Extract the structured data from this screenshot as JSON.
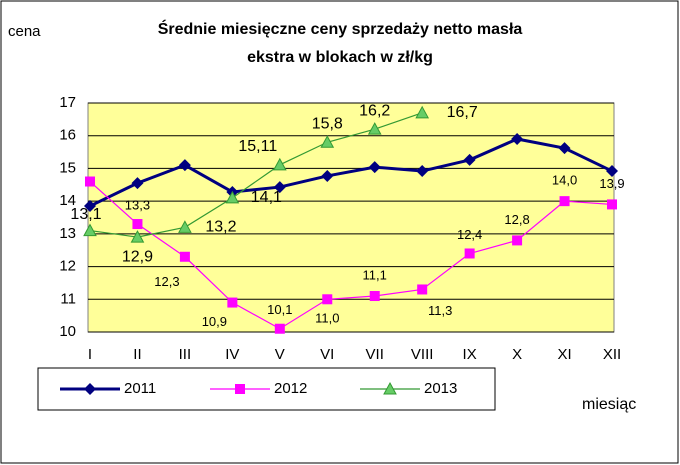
{
  "chart_data": {
    "type": "line",
    "title": [
      "Średnie miesięczne ceny sprzedaży netto masła",
      "ekstra w blokach w zł/kg"
    ],
    "y_label": "cena",
    "x_label": "miesiąc",
    "categories": [
      "I",
      "II",
      "III",
      "IV",
      "V",
      "VI",
      "VII",
      "VIII",
      "IX",
      "X",
      "XI",
      "XII"
    ],
    "ylim": [
      10,
      17
    ],
    "yticks": [
      10,
      11,
      12,
      13,
      14,
      15,
      16,
      17
    ],
    "grid": true,
    "series": [
      {
        "name": "2011",
        "color": "#000080",
        "marker": "diamond",
        "values": [
          13.85,
          14.55,
          15.1,
          14.28,
          14.43,
          14.77,
          15.04,
          14.92,
          15.26,
          15.9,
          15.62,
          14.92
        ]
      },
      {
        "name": "2012",
        "color": "#ff00ff",
        "marker": "square",
        "values": [
          14.6,
          13.3,
          12.3,
          10.9,
          10.1,
          11.0,
          11.1,
          11.3,
          12.4,
          12.8,
          14.0,
          13.9
        ],
        "value_labels": [
          null,
          "13,3",
          "12,3",
          "10,9",
          "10,1",
          "11,0",
          "11,1",
          "11,3",
          "12,4",
          "12,8",
          "14,0",
          "13,9"
        ]
      },
      {
        "name": "2013",
        "color": "#339933",
        "marker": "triangle",
        "values": [
          13.1,
          12.9,
          13.2,
          14.1,
          15.11,
          15.8,
          16.2,
          16.7,
          null,
          null,
          null,
          null
        ],
        "value_labels": [
          "13,1",
          "12,9",
          "13,2",
          "14,1",
          "15,11",
          "15,8",
          "16,2",
          "16,7",
          null,
          null,
          null,
          null
        ]
      }
    ]
  }
}
